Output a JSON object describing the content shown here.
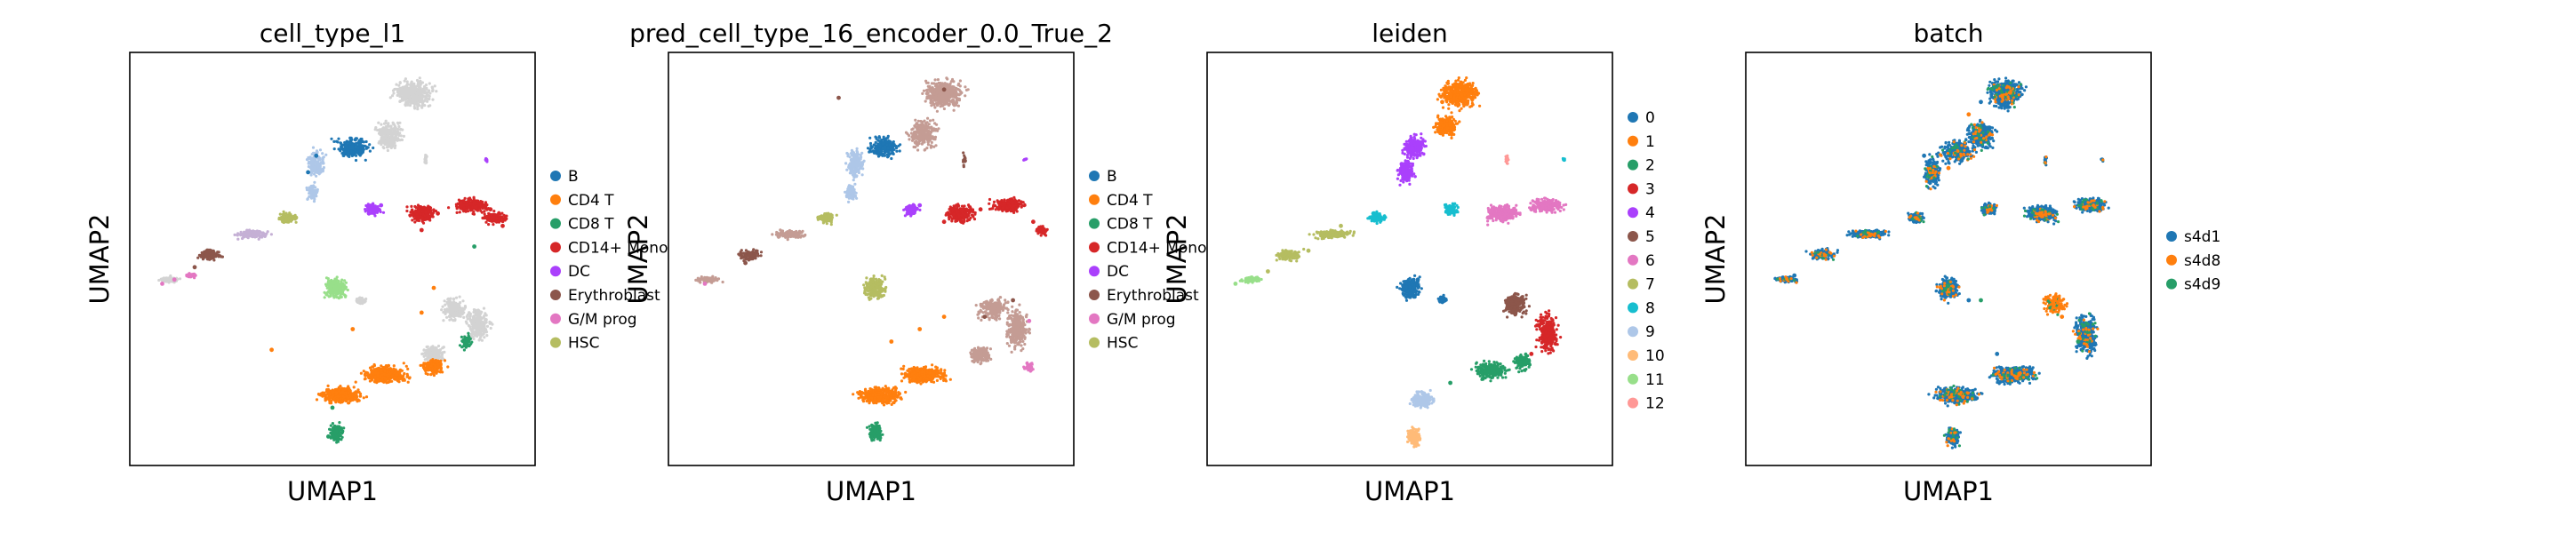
{
  "figure": {
    "panels": [
      {
        "title": "cell_type_l1",
        "xlabel": "UMAP1",
        "ylabel": "UMAP2",
        "legend": [
          {
            "label": "B",
            "color": "#1f77b4"
          },
          {
            "label": "CD4 T",
            "color": "#ff7f0e"
          },
          {
            "label": "CD8 T",
            "color": "#279e68"
          },
          {
            "label": "CD14+ Mono",
            "color": "#d62728"
          },
          {
            "label": "DC",
            "color": "#aa40fc"
          },
          {
            "label": "Erythroblast",
            "color": "#8c564b"
          },
          {
            "label": "G/M prog",
            "color": "#e377c2"
          },
          {
            "label": "HSC",
            "color": "#b5bd61"
          }
        ]
      },
      {
        "title": "pred_cell_type_16_encoder_0.0_True_2",
        "xlabel": "UMAP1",
        "ylabel": "UMAP2",
        "legend": [
          {
            "label": "B",
            "color": "#1f77b4"
          },
          {
            "label": "CD4 T",
            "color": "#ff7f0e"
          },
          {
            "label": "CD8 T",
            "color": "#279e68"
          },
          {
            "label": "CD14+ Mono",
            "color": "#d62728"
          },
          {
            "label": "DC",
            "color": "#aa40fc"
          },
          {
            "label": "Erythroblast",
            "color": "#8c564b"
          },
          {
            "label": "G/M prog",
            "color": "#e377c2"
          },
          {
            "label": "HSC",
            "color": "#b5bd61"
          }
        ]
      },
      {
        "title": "leiden",
        "xlabel": "UMAP1",
        "ylabel": "UMAP2",
        "legend": [
          {
            "label": "0",
            "color": "#1f77b4"
          },
          {
            "label": "1",
            "color": "#ff7f0e"
          },
          {
            "label": "2",
            "color": "#279e68"
          },
          {
            "label": "3",
            "color": "#d62728"
          },
          {
            "label": "4",
            "color": "#aa40fc"
          },
          {
            "label": "5",
            "color": "#8c564b"
          },
          {
            "label": "6",
            "color": "#e377c2"
          },
          {
            "label": "7",
            "color": "#b5bd61"
          },
          {
            "label": "8",
            "color": "#17becf"
          },
          {
            "label": "9",
            "color": "#aec7e8"
          },
          {
            "label": "10",
            "color": "#ffbb78"
          },
          {
            "label": "11",
            "color": "#98df8a"
          },
          {
            "label": "12",
            "color": "#ff9896"
          }
        ]
      },
      {
        "title": "batch",
        "xlabel": "UMAP1",
        "ylabel": "UMAP2",
        "legend": [
          {
            "label": "s4d1",
            "color": "#1f77b4"
          },
          {
            "label": "s4d8",
            "color": "#ff7f0e"
          },
          {
            "label": "s4d9",
            "color": "#279e68"
          }
        ]
      }
    ]
  },
  "chart_data": [
    {
      "type": "scatter",
      "title": "cell_type_l1",
      "xlabel": "UMAP1",
      "ylabel": "UMAP2",
      "ticks": "none",
      "grid": false,
      "legend_position": "right-outside",
      "series": [
        {
          "name": "B",
          "color": "#1f77b4",
          "x": [
            0.44,
            0.46,
            0.55
          ],
          "y": [
            0.71,
            0.75,
            0.77
          ]
        },
        {
          "name": "CD4 T",
          "color": "#ff7f0e",
          "x": [
            0.35,
            0.55,
            0.72,
            0.75
          ],
          "y": [
            0.28,
            0.33,
            0.37,
            0.43
          ]
        },
        {
          "name": "CD8 T",
          "color": "#279e68",
          "x": [
            0.49,
            0.5,
            0.85
          ],
          "y": [
            0.07,
            0.14,
            0.53
          ]
        },
        {
          "name": "CD14+ Mono",
          "color": "#d62728",
          "x": [
            0.72,
            0.76,
            0.82,
            0.89,
            0.92
          ],
          "y": [
            0.57,
            0.61,
            0.63,
            0.62,
            0.58
          ]
        },
        {
          "name": "DC",
          "color": "#aa40fc",
          "x": [
            0.59,
            0.62
          ],
          "y": [
            0.61,
            0.63
          ]
        },
        {
          "name": "Erythroblast",
          "color": "#8c564b",
          "x": [
            0.16,
            0.19
          ],
          "y": [
            0.48,
            0.51
          ]
        },
        {
          "name": "G/M prog",
          "color": "#e377c2",
          "x": [
            0.08,
            0.11
          ],
          "y": [
            0.44,
            0.45
          ]
        },
        {
          "name": "HSC",
          "color": "#b5bd61",
          "x": [
            0.38,
            0.41
          ],
          "y": [
            0.59,
            0.6
          ]
        }
      ]
    },
    {
      "type": "scatter",
      "title": "pred_cell_type_16_encoder_0.0_True_2",
      "xlabel": "UMAP1",
      "ylabel": "UMAP2",
      "ticks": "none",
      "grid": false,
      "legend_position": "right-outside",
      "series": [
        {
          "name": "B",
          "color": "#1f77b4",
          "x": [
            0.51,
            0.53
          ],
          "y": [
            0.76,
            0.78
          ]
        },
        {
          "name": "CD4 T",
          "color": "#ff7f0e",
          "x": [
            0.55,
            0.62,
            0.68
          ],
          "y": [
            0.3,
            0.33,
            0.36
          ]
        },
        {
          "name": "CD8 T",
          "color": "#279e68",
          "x": [
            0.5,
            0.52
          ],
          "y": [
            0.07,
            0.09
          ]
        },
        {
          "name": "CD14+ Mono",
          "color": "#d62728",
          "x": [
            0.68,
            0.77,
            0.85,
            0.9
          ],
          "y": [
            0.59,
            0.62,
            0.62,
            0.59
          ]
        },
        {
          "name": "DC",
          "color": "#aa40fc",
          "x": [
            0.59,
            0.62
          ],
          "y": [
            0.61,
            0.63
          ]
        },
        {
          "name": "Erythroblast",
          "color": "#8c564b",
          "x": [
            0.19,
            0.42,
            0.68,
            0.78,
            0.85
          ],
          "y": [
            0.49,
            0.89,
            0.91,
            0.36,
            0.4
          ]
        },
        {
          "name": "G/M prog",
          "color": "#e377c2",
          "x": [
            0.09,
            0.89
          ],
          "y": [
            0.44,
            0.35
          ]
        },
        {
          "name": "HSC",
          "color": "#b5bd61",
          "x": [
            0.37,
            0.5
          ],
          "y": [
            0.6,
            0.45
          ]
        }
      ]
    },
    {
      "type": "scatter",
      "title": "leiden",
      "xlabel": "UMAP1",
      "ylabel": "UMAP2",
      "ticks": "none",
      "grid": false,
      "legend_position": "right-outside",
      "series": [
        {
          "name": "0",
          "color": "#1f77b4",
          "x": [
            0.49,
            0.52
          ],
          "y": [
            0.43,
            0.45
          ]
        },
        {
          "name": "1",
          "color": "#ff7f0e",
          "x": [
            0.58,
            0.64
          ],
          "y": [
            0.88,
            0.91
          ]
        },
        {
          "name": "2",
          "color": "#279e68",
          "x": [
            0.6,
            0.68
          ],
          "y": [
            0.2,
            0.21
          ]
        },
        {
          "name": "3",
          "color": "#d62728",
          "x": [
            0.8,
            0.82
          ],
          "y": [
            0.27,
            0.34
          ]
        },
        {
          "name": "4",
          "color": "#aa40fc",
          "x": [
            0.48,
            0.52
          ],
          "y": [
            0.73,
            0.78
          ]
        },
        {
          "name": "5",
          "color": "#8c564b",
          "x": [
            0.74,
            0.78
          ],
          "y": [
            0.38,
            0.4
          ]
        },
        {
          "name": "6",
          "color": "#e377c2",
          "x": [
            0.7,
            0.8
          ],
          "y": [
            0.61,
            0.62
          ]
        },
        {
          "name": "7",
          "color": "#b5bd61",
          "x": [
            0.15,
            0.25,
            0.33
          ],
          "y": [
            0.47,
            0.52,
            0.58
          ]
        },
        {
          "name": "8",
          "color": "#17becf",
          "x": [
            0.41,
            0.6
          ],
          "y": [
            0.61,
            0.62
          ]
        },
        {
          "name": "9",
          "color": "#aec7e8",
          "x": [
            0.52,
            0.54
          ],
          "y": [
            0.15,
            0.17
          ]
        },
        {
          "name": "10",
          "color": "#ffbb78",
          "x": [
            0.51
          ],
          "y": [
            0.07
          ]
        },
        {
          "name": "11",
          "color": "#98df8a",
          "x": [
            0.07,
            0.12
          ],
          "y": [
            0.44,
            0.45
          ]
        },
        {
          "name": "12",
          "color": "#ff9896",
          "x": [
            0.74
          ],
          "y": [
            0.74
          ]
        }
      ]
    },
    {
      "type": "scatter",
      "title": "batch",
      "xlabel": "UMAP1",
      "ylabel": "UMAP2",
      "ticks": "none",
      "grid": false,
      "legend_position": "right-outside",
      "series": [
        {
          "name": "s4d1",
          "color": "#1f77b4",
          "x": [
            0.12,
            0.44,
            0.58,
            0.55,
            0.75,
            0.62
          ],
          "y": [
            0.46,
            0.75,
            0.88,
            0.4,
            0.6,
            0.27
          ]
        },
        {
          "name": "s4d8",
          "color": "#ff7f0e",
          "x": [
            0.5,
            0.55,
            0.76,
            0.78
          ],
          "y": [
            0.72,
            0.85,
            0.39,
            0.36
          ]
        },
        {
          "name": "s4d9",
          "color": "#279e68",
          "x": [
            0.58,
            0.82
          ],
          "y": [
            0.4,
            0.3
          ]
        }
      ]
    }
  ]
}
